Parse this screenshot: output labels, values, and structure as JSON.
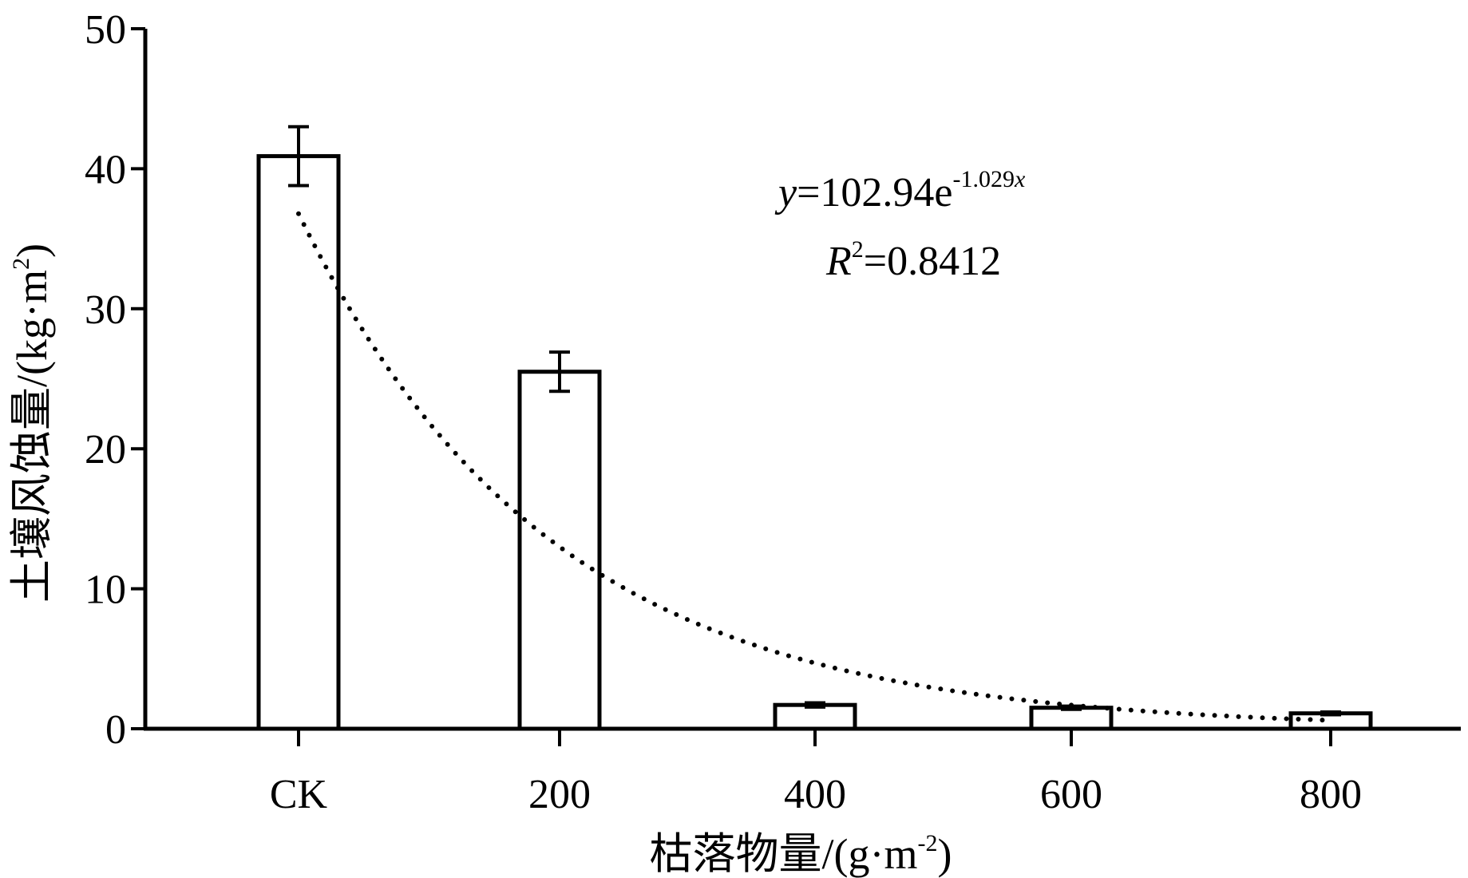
{
  "chart_data": {
    "type": "bar",
    "title": "",
    "xlabel": "枯落物量/(g·m-2)",
    "xlabel_parts": {
      "main": "枯落物量/(g·m",
      "sup": "-2",
      "close": ")"
    },
    "ylabel": "土壤风蚀量/(kg·m2)",
    "ylabel_parts": {
      "main": "土壤风蚀量/(kg·m",
      "sup": "2",
      "close": ")"
    },
    "categories": [
      "CK",
      "200",
      "400",
      "600",
      "800"
    ],
    "values": [
      40.9,
      25.5,
      1.7,
      1.5,
      1.1
    ],
    "errors": [
      2.1,
      1.4,
      0.15,
      0.12,
      0.1
    ],
    "ylim": [
      0,
      50
    ],
    "yticks": [
      "0",
      "10",
      "20",
      "30",
      "40",
      "50"
    ],
    "grid": false,
    "legend": "none",
    "trendline": {
      "type": "exponential",
      "a": 102.94,
      "b": -1.029,
      "style": "dotted"
    },
    "equation": {
      "y_var": "y",
      "y_rhs": "=102.94e",
      "y_exp": "-1.029",
      "y_exp_var": "x",
      "r_var": "R",
      "r_sup": "2",
      "r_rhs": "=0.8412"
    },
    "colors": {
      "bar_fill": "#ffffff",
      "stroke": "#000000",
      "trend": "#000000"
    }
  }
}
